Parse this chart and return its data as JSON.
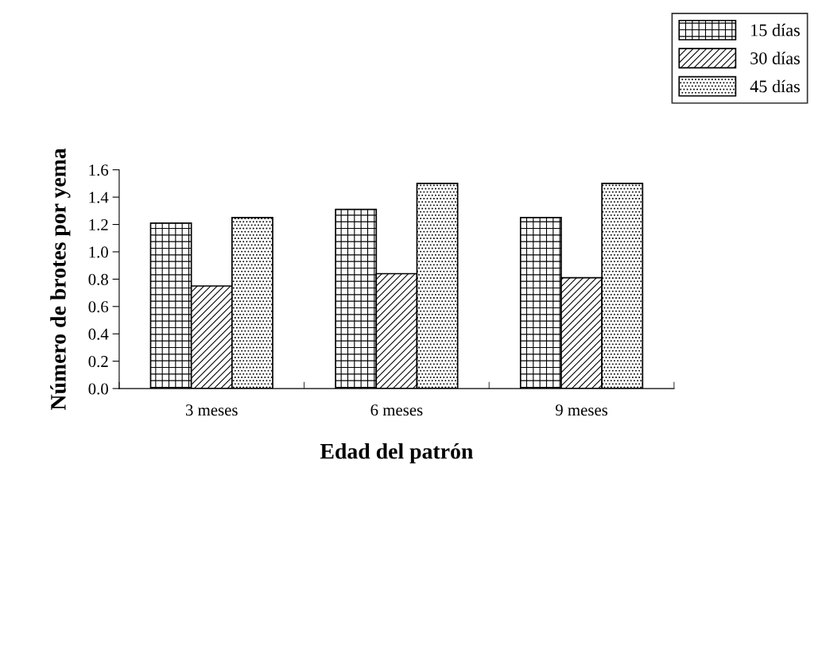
{
  "chart_data": {
    "type": "bar",
    "xlabel": "Edad del patrón",
    "ylabel": "Número de brotes por yema",
    "categories": [
      "3 meses",
      "6 meses",
      "9 meses"
    ],
    "series": [
      {
        "name": "15 días",
        "color": "#000000",
        "values": [
          1.21,
          1.31,
          1.25
        ]
      },
      {
        "name": "30 días",
        "color": "#000000",
        "values": [
          0.75,
          0.84,
          0.81
        ]
      },
      {
        "name": "45 días",
        "color": "#000000",
        "values": [
          1.25,
          1.5,
          1.5
        ]
      }
    ],
    "ylim": [
      0,
      1.6
    ],
    "yticks": [
      {
        "value": 0,
        "label": "0.0"
      },
      {
        "value": 0.2,
        "label": "0.2"
      },
      {
        "value": 0.4,
        "label": "0.4"
      },
      {
        "value": 0.6,
        "label": "0.6"
      },
      {
        "value": 0.8,
        "label": "0.8"
      },
      {
        "value": 1.0,
        "label": "1.0"
      },
      {
        "value": 1.2,
        "label": "1.2"
      },
      {
        "value": 1.4,
        "label": "1.4"
      },
      {
        "value": 1.6,
        "label": "1.6"
      }
    ],
    "grid": false,
    "legend": "top right"
  }
}
